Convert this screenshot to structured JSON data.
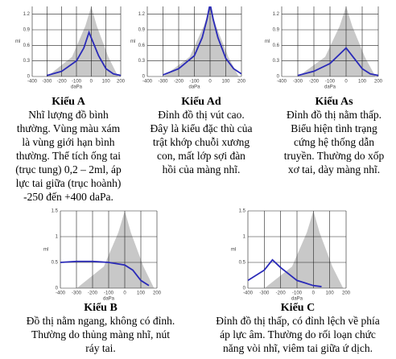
{
  "panels": [
    {
      "title": "Kiểu A",
      "lines": [
        "Nhĩ lượng đồ bình",
        "thường. Vùng màu xám",
        "là vùng giới hạn bình",
        "thường. Thể tích ống tai",
        "(trục tung) 0,2 – 2ml, áp",
        "lực tai giữa (trục hoành)",
        "-250 đến +400 daPa."
      ],
      "chart": {
        "type": "line",
        "ylabel": "ml",
        "xlabel": "daPa",
        "xlim": [
          -400,
          200
        ],
        "ylim": [
          0,
          1.35
        ],
        "xticks": [
          -400,
          -300,
          -200,
          -100,
          0,
          100,
          200
        ],
        "yticks": [
          0,
          0.3,
          0.6,
          0.9,
          1.2
        ],
        "color": "#2a2ab8",
        "x": [
          -300,
          -200,
          -100,
          -50,
          -15,
          50,
          100,
          150,
          200
        ],
        "values": [
          0.02,
          0.1,
          0.3,
          0.55,
          0.85,
          0.4,
          0.15,
          0.05,
          0.02
        ]
      }
    },
    {
      "title": "Kiểu Ad",
      "lines": [
        "Đỉnh đồ thị vút cao.",
        "Đây là kiểu đặc thù của",
        "trật khớp chuỗi xương",
        "con, mất lớp sợi đàn",
        "hồi của màng nhĩ."
      ],
      "chart": {
        "type": "line",
        "ylabel": "ml",
        "xlabel": "daPa",
        "xlim": [
          -400,
          200
        ],
        "ylim": [
          0,
          1.35
        ],
        "xticks": [
          -400,
          -300,
          -200,
          -100,
          0,
          100,
          200
        ],
        "yticks": [
          0,
          0.3,
          0.6,
          0.9,
          1.2
        ],
        "color": "#2a2ab8",
        "x": [
          -300,
          -200,
          -100,
          -50,
          -20,
          0,
          20,
          50,
          100,
          150,
          200
        ],
        "values": [
          0.03,
          0.15,
          0.4,
          0.75,
          1.1,
          1.4,
          1.1,
          0.75,
          0.35,
          0.15,
          0.05
        ]
      }
    },
    {
      "title": "Kiểu As",
      "lines": [
        "Đỉnh đồ thị nằm thấp.",
        "Biểu hiện tình trạng",
        "cứng hệ thống dẫn",
        "truyền. Thường do xốp",
        "xơ tai, dày màng nhĩ."
      ],
      "chart": {
        "type": "line",
        "ylabel": "ml",
        "xlabel": "daPa",
        "xlim": [
          -400,
          200
        ],
        "ylim": [
          0,
          1.35
        ],
        "xticks": [
          -400,
          -300,
          -200,
          -100,
          0,
          100,
          200
        ],
        "yticks": [
          0,
          0.3,
          0.6,
          0.9,
          1.2
        ],
        "color": "#2a2ab8",
        "x": [
          -300,
          -200,
          -100,
          -50,
          0,
          50,
          100,
          150,
          200
        ],
        "values": [
          0.02,
          0.1,
          0.25,
          0.4,
          0.55,
          0.35,
          0.15,
          0.05,
          0.02
        ]
      }
    },
    {
      "title": "Kiểu B",
      "lines": [
        "Đồ thị nằm ngang, không có đỉnh.",
        "Thường do thủng màng nhĩ, nút",
        "ráy tai."
      ],
      "chart": {
        "type": "line",
        "ylabel": "ml",
        "xlabel": "daPa",
        "xlim": [
          -400,
          200
        ],
        "ylim": [
          0,
          1.5
        ],
        "xticks": [
          -400,
          -300,
          -200,
          -100,
          0,
          100,
          200
        ],
        "yticks": [
          0,
          0.5,
          1,
          1.5
        ],
        "color": "#2a2ab8",
        "x": [
          -400,
          -300,
          -200,
          -100,
          0,
          50,
          100,
          150
        ],
        "values": [
          0.5,
          0.52,
          0.52,
          0.5,
          0.45,
          0.35,
          0.15,
          0.05
        ]
      }
    },
    {
      "title": "Kiểu C",
      "lines": [
        "Đỉnh đồ thị thấp, có đỉnh lệch về phía",
        "áp lực âm. Thường do rối loạn chức",
        "năng vòi nhĩ, viêm tai giữa ứ dịch."
      ],
      "chart": {
        "type": "line",
        "ylabel": "ml",
        "xlabel": "daPa",
        "xlim": [
          -400,
          200
        ],
        "ylim": [
          0,
          1.5
        ],
        "xticks": [
          -400,
          -300,
          -200,
          -100,
          0,
          100,
          200
        ],
        "yticks": [
          0,
          0.5,
          1,
          1.5
        ],
        "color": "#2a2ab8",
        "x": [
          -400,
          -300,
          -250,
          -200,
          -100,
          0,
          50
        ],
        "values": [
          0.15,
          0.35,
          0.55,
          0.4,
          0.15,
          0.05,
          0.03
        ]
      }
    }
  ]
}
